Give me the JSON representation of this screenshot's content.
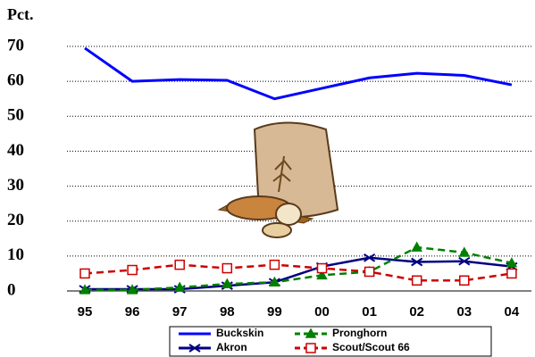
{
  "chart_data": {
    "type": "line",
    "title": "Pct.",
    "categories": [
      "95",
      "96",
      "97",
      "98",
      "99",
      "00",
      "01",
      "02",
      "03",
      "04"
    ],
    "series": [
      {
        "name": "Buckskin",
        "color": "#0000ff",
        "marker": "none",
        "dash": false,
        "values": [
          69.5,
          60,
          60.5,
          60.3,
          55,
          58,
          61,
          62.3,
          61.7,
          59
        ]
      },
      {
        "name": "Akron",
        "color": "#000080",
        "marker": "x",
        "dash": false,
        "values": [
          0.5,
          0.5,
          0.5,
          1.5,
          2.5,
          7,
          9.5,
          8.3,
          8.5,
          7
        ]
      },
      {
        "name": "Pronghorn",
        "color": "#008000",
        "marker": "triangle",
        "dash": true,
        "values": [
          0.3,
          0.3,
          1,
          2,
          2.5,
          4.5,
          5.5,
          12.5,
          11,
          8
        ]
      },
      {
        "name": "Scout/Scout 66",
        "color": "#cc0000",
        "marker": "square",
        "dash": true,
        "values": [
          5,
          6,
          7.5,
          6.5,
          7.5,
          6.5,
          5.5,
          3,
          3,
          5
        ]
      }
    ],
    "ylim": [
      0,
      70
    ],
    "yticks": [
      0,
      10,
      20,
      30,
      40,
      50,
      60,
      70
    ],
    "grid": true
  }
}
